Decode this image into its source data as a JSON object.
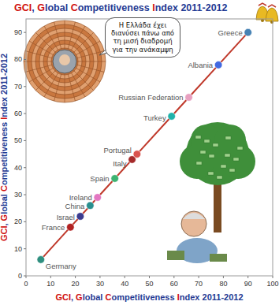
{
  "chart_data": {
    "type": "scatter",
    "title": "GCI, Global Competitiveness Index 2011-2012",
    "x_label": "GCI, Global Competitiveness Index 2011-2012",
    "y_label": "GCI, Global Competitiveness Index 2011-2012",
    "labels": [
      "Germany",
      "France",
      "Israel",
      "China",
      "Ireland",
      "Spain",
      "Italy",
      "Portugal",
      "Turkey",
      "Russian Federation",
      "Albania",
      "Greece"
    ],
    "x": [
      6,
      18,
      22,
      26,
      29,
      36,
      43,
      45,
      59,
      66,
      78,
      90
    ],
    "values": [
      6,
      18,
      22,
      26,
      29,
      36,
      43,
      45,
      59,
      66,
      78,
      90
    ],
    "colors": [
      "#2f8f7f",
      "#b22222",
      "#3b3b8f",
      "#2a8f8f",
      "#e377c2",
      "#3cb371",
      "#a52a2a",
      "#d9534f",
      "#20b2aa",
      "#e8a0c0",
      "#4169e1",
      "#4682b4"
    ],
    "color": "#c0392b",
    "line_style": "solid",
    "marker": "circle",
    "grid": false,
    "xlim": [
      0,
      100
    ],
    "ylim": [
      0,
      95
    ],
    "xticks": [
      0,
      10,
      20,
      30,
      40,
      50,
      60,
      70,
      80,
      90,
      100
    ],
    "yticks": [
      0,
      10,
      20,
      30,
      40,
      50,
      60,
      70,
      80,
      90
    ],
    "annotations": [
      "Η Ελλάδα έχει διανύσει πάνω από τη μισή διαδρομή για την ανάκαμψη"
    ]
  }
}
